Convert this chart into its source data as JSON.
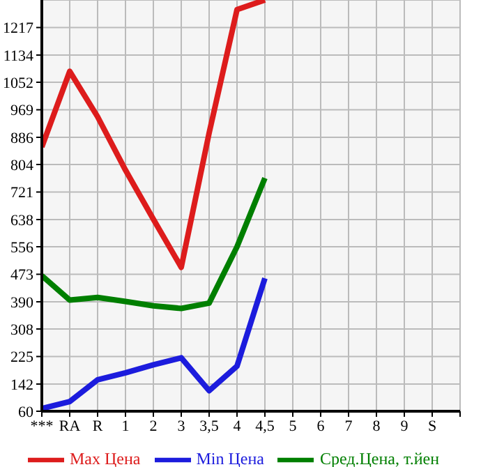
{
  "chart_data": {
    "type": "line",
    "categories": [
      "***",
      "RA",
      "R",
      "1",
      "2",
      "3",
      "3,5",
      "4",
      "4,5",
      "5",
      "6",
      "7",
      "8",
      "9",
      "S",
      null
    ],
    "ylim": [
      60,
      1300
    ],
    "yticks": [
      60,
      142,
      225,
      308,
      390,
      473,
      556,
      638,
      721,
      804,
      886,
      969,
      1052,
      1134,
      1217
    ],
    "series": [
      {
        "name": "Max Цена",
        "color": "#dd1c1c",
        "values": [
          857,
          1085,
          948,
          787,
          639,
          494,
          899,
          1271,
          1300,
          null,
          null,
          null,
          null,
          null,
          null,
          null
        ]
      },
      {
        "name": "Min Цена",
        "color": "#1c1cdd",
        "values": [
          68,
          89,
          155,
          176,
          200,
          221,
          122,
          196,
          461,
          null,
          null,
          null,
          null,
          null,
          null,
          null
        ]
      },
      {
        "name": "Сред.Цена, т.йен",
        "color": "#007f00",
        "values": [
          469,
          395,
          403,
          391,
          378,
          370,
          386,
          556,
          763,
          null,
          null,
          null,
          null,
          null,
          null,
          null
        ]
      }
    ],
    "grid": true,
    "legend": "bottom",
    "marker": "none",
    "line_style": "solid"
  }
}
